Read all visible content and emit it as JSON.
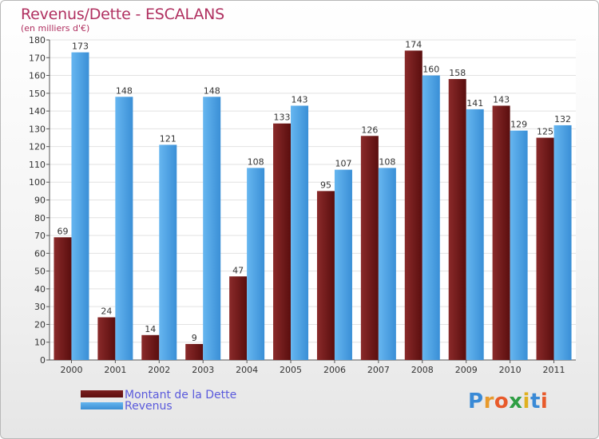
{
  "chart_data": {
    "type": "bar",
    "title": "Revenus/Dette - ESCALANS",
    "subtitle": "(en milliers d'€)",
    "categories": [
      "2000",
      "2001",
      "2002",
      "2003",
      "2004",
      "2005",
      "2006",
      "2007",
      "2008",
      "2009",
      "2010",
      "2011"
    ],
    "series": [
      {
        "name": "Montant de la Dette",
        "color": "#7a1e1e",
        "values": [
          69,
          24,
          14,
          9,
          47,
          133,
          95,
          126,
          174,
          158,
          143,
          125
        ]
      },
      {
        "name": "Revenus",
        "color": "#4da3e6",
        "values": [
          173,
          148,
          121,
          148,
          108,
          143,
          107,
          108,
          160,
          141,
          129,
          132
        ]
      }
    ],
    "ylim": [
      0,
      180
    ],
    "ytick_step": 10,
    "grid": true,
    "legend_position": "bottom-left"
  },
  "logo": {
    "letters": [
      "P",
      "r",
      "o",
      "x",
      "i",
      "t",
      "i"
    ],
    "colors": [
      "#3a8ad6",
      "#e89a2c",
      "#e85a2a",
      "#2f9e44",
      "#e0b020",
      "#3a8ad6",
      "#e85a2a"
    ]
  }
}
